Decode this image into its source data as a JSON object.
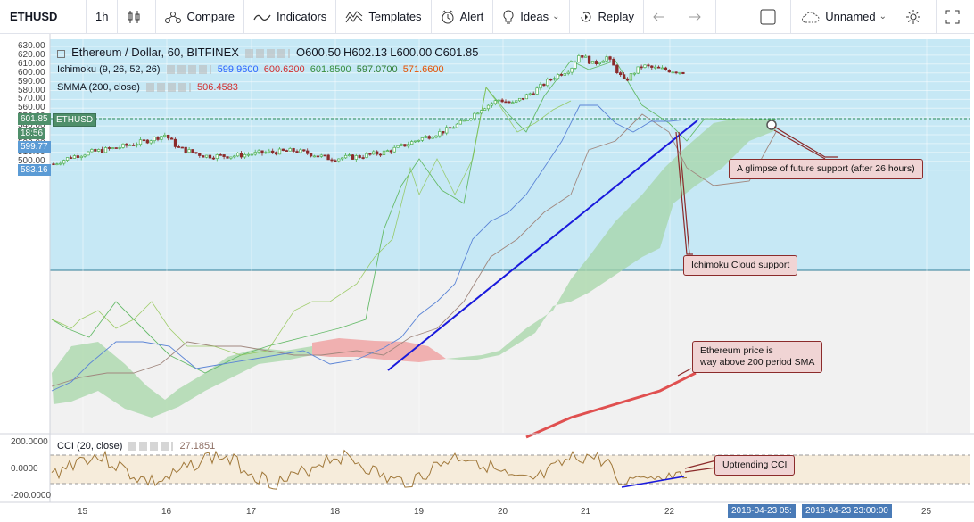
{
  "toolbar": {
    "symbol": "ETHUSD",
    "interval": "1h",
    "compare": "Compare",
    "indicators": "Indicators",
    "templates": "Templates",
    "alert": "Alert",
    "ideas": "Ideas",
    "replay": "Replay",
    "layout_name": "Unnamed"
  },
  "legend": {
    "title": "Ethereum / Dollar, 60, BITFINEX",
    "open_label": "O",
    "open": "600.50",
    "high_label": "H",
    "high": "602.13",
    "low_label": "L",
    "low": "600.00",
    "close_label": "C",
    "close": "601.85",
    "ichimoku_label": "Ichimoku (9, 26, 52, 26)",
    "ichimoku_v1": "599.9600",
    "ichimoku_v2": "600.6200",
    "ichimoku_v3": "601.8500",
    "ichimoku_v4": "597.0700",
    "ichimoku_v5": "571.6600",
    "smma_label": "SMMA (200, close)",
    "smma_value": "506.4583",
    "cci_label": "CCI (20, close)",
    "cci_value": "27.1851"
  },
  "price_axis": [
    "630.00",
    "620.00",
    "610.00",
    "600.00",
    "590.00",
    "580.00",
    "570.00",
    "560.00",
    "550.00",
    "540.00",
    "530.00",
    "520.00",
    "510.00",
    "500.00",
    "490.00"
  ],
  "price_tags": {
    "last": "601.85",
    "last_symbol": "ETHUSD",
    "countdown": "18:56",
    "tenkan": "599.77",
    "senkou": "583.16"
  },
  "cci_axis": [
    "200.0000",
    "0.0000",
    "-200.0000"
  ],
  "time_axis": [
    "15",
    "16",
    "17",
    "18",
    "19",
    "20",
    "21",
    "22",
    "25"
  ],
  "date_tags": [
    "2018-04-23 05:",
    "2018-04-23 23:00:00"
  ],
  "callouts": {
    "future_support": "A glimpse of future support (after 26 hours)",
    "cloud_support": "Ichimoku Cloud support",
    "sma_note_1": "Ethereum price is",
    "sma_note_2": "way above 200 period SMA",
    "cci_note": "Uptrending CCI"
  },
  "colors": {
    "up_candle": "#4caf50",
    "down_candle": "#8b2b2b",
    "trendline": "#1a1adc",
    "sma": "#e05050",
    "bullish_cloud": "#a5d6a7",
    "bearish_cloud": "#ef9a9a",
    "highlight_band": "#b3e0f2",
    "price_tag_bg": "#5b9bd5"
  },
  "chart_data": {
    "type": "candlestick",
    "symbol": "ETHUSD",
    "interval": "60",
    "exchange": "BITFINEX",
    "ylim": [
      485,
      632
    ],
    "x": [
      "15",
      "16",
      "17",
      "18",
      "19",
      "20",
      "21",
      "22",
      "23",
      "24",
      "25"
    ],
    "close_approx": [
      502,
      520,
      505,
      508,
      522,
      570,
      615,
      601,
      null,
      null,
      null
    ],
    "sma200_note": "SMMA(200) = 506.4583",
    "cci_range": [
      -200,
      200
    ]
  }
}
